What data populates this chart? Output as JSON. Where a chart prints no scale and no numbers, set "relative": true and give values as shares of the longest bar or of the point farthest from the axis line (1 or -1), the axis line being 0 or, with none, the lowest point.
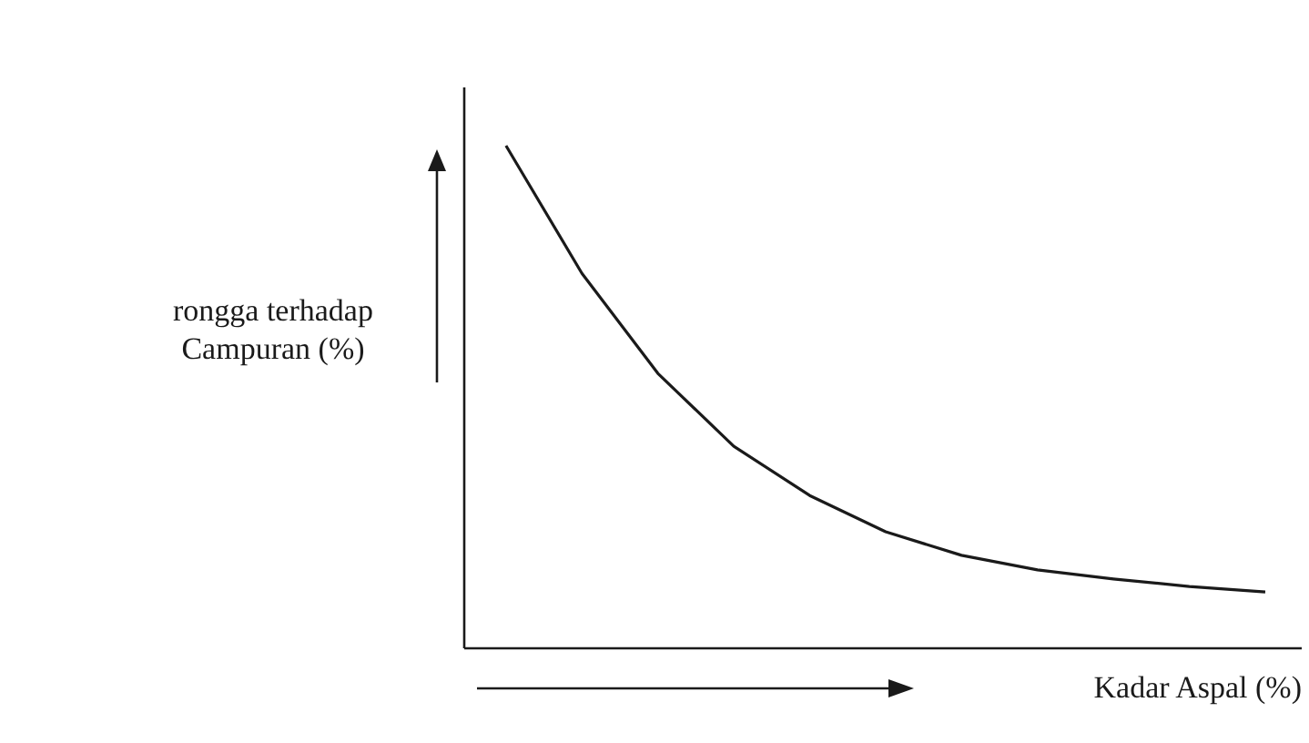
{
  "chart_data": {
    "type": "line",
    "xlabel": "Kadar Aspal (%)",
    "ylabel": "rongga terhadap Campuran (%)",
    "relative": true,
    "line_style": "solid",
    "categories": [
      null,
      null,
      null,
      null,
      null,
      null,
      null,
      null,
      null,
      null,
      null
    ],
    "series": [
      {
        "color": "#1a1a1a",
        "values": [
          1,
          0.746,
          0.547,
          0.402,
          0.304,
          0.232,
          0.185,
          0.156,
          0.138,
          0.123,
          0.112
        ]
      }
    ]
  }
}
